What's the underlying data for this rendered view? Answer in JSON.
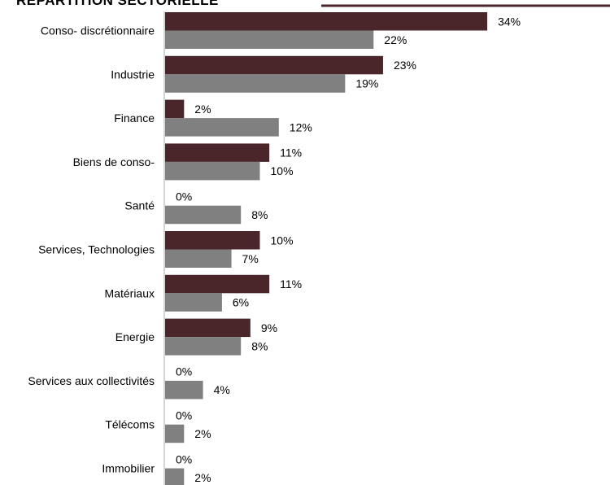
{
  "colors": {
    "series_a": "#4a2529",
    "series_b": "#808080",
    "title_rule": "#4a2529",
    "axis": "#aaaaaa"
  },
  "chart_data": {
    "type": "bar",
    "orientation": "horizontal",
    "title": "RÉPARTITION SECTORIELLE",
    "categories": [
      "Conso- discrétionnaire",
      "Industrie",
      "Finance",
      "Biens de conso-",
      "Santé",
      "Services, Technologies",
      "Matériaux",
      "Energie",
      "Services aux collectivités",
      "Télécoms",
      "Immobilier"
    ],
    "series": [
      {
        "values": [
          34,
          23,
          2,
          11,
          0,
          10,
          11,
          9,
          0,
          0,
          0
        ],
        "labels": [
          "34%",
          "23%",
          "2%",
          "11%",
          "0%",
          "10%",
          "11%",
          "9%",
          "0%",
          "0%",
          "0%"
        ],
        "color": "#4a2529"
      },
      {
        "values": [
          22,
          19,
          12,
          10,
          8,
          7,
          6,
          8,
          4,
          2,
          2
        ],
        "labels": [
          "22%",
          "19%",
          "12%",
          "10%",
          "8%",
          "7%",
          "6%",
          "8%",
          "4%",
          "2%",
          "2%"
        ],
        "color": "#808080"
      }
    ],
    "xlim": [
      0,
      34
    ],
    "value_unit": "%",
    "grid": false,
    "legend": "none"
  }
}
